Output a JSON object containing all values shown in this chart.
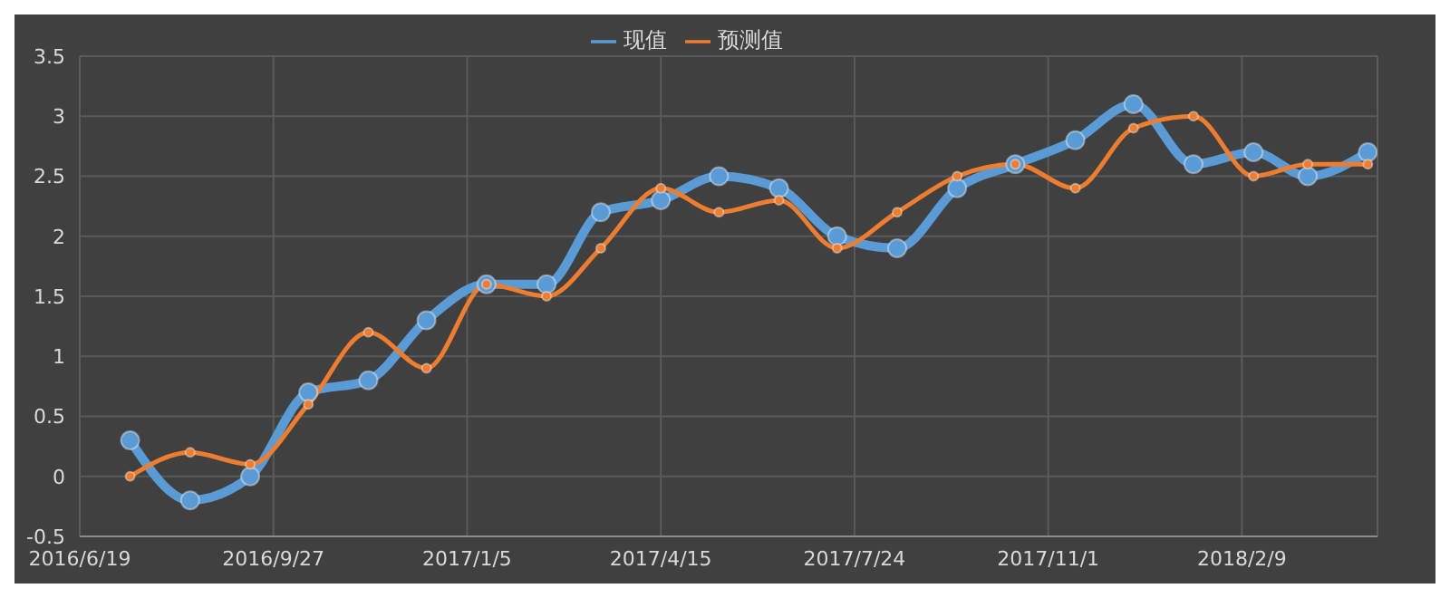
{
  "chart_data": {
    "type": "line",
    "x": [
      "2016-07-15",
      "2016-08-15",
      "2016-09-15",
      "2016-10-15",
      "2016-11-15",
      "2016-12-15",
      "2017-01-15",
      "2017-02-15",
      "2017-03-15",
      "2017-04-15",
      "2017-05-15",
      "2017-06-15",
      "2017-07-15",
      "2017-08-15",
      "2017-09-15",
      "2017-10-15",
      "2017-11-15",
      "2017-12-15",
      "2018-01-15",
      "2018-02-15",
      "2018-03-15",
      "2018-04-15"
    ],
    "series": [
      {
        "name": "现值",
        "color": "#5b9bd5",
        "values": [
          0.3,
          -0.2,
          0,
          0.7,
          0.8,
          1.3,
          1.6,
          1.6,
          2.2,
          2.3,
          2.5,
          2.4,
          2.0,
          1.9,
          2.4,
          2.6,
          2.8,
          3.1,
          2.6,
          2.7,
          2.5,
          2.7
        ]
      },
      {
        "name": "预测值",
        "color": "#ed7d31",
        "values": [
          0,
          0.2,
          0.1,
          0.6,
          1.2,
          0.9,
          1.6,
          1.5,
          1.9,
          2.4,
          2.2,
          2.3,
          1.9,
          2.2,
          2.5,
          2.6,
          2.4,
          2.9,
          3.0,
          2.5,
          2.6,
          2.6
        ]
      }
    ],
    "xlim": [
      "2016-06-19",
      "2018-04-20"
    ],
    "xticks": [
      {
        "value": "2016-06-19",
        "label": "2016/6/19"
      },
      {
        "value": "2016-09-27",
        "label": "2016/9/27"
      },
      {
        "value": "2017-01-05",
        "label": "2017/1/5"
      },
      {
        "value": "2017-04-15",
        "label": "2017/4/15"
      },
      {
        "value": "2017-07-24",
        "label": "2017/7/24"
      },
      {
        "value": "2017-11-01",
        "label": "2017/11/1"
      },
      {
        "value": "2018-02-09",
        "label": "2018/2/9"
      }
    ],
    "ylim": [
      -0.5,
      3.5
    ],
    "yticks": [
      -0.5,
      0,
      0.5,
      1,
      1.5,
      2,
      2.5,
      3,
      3.5
    ],
    "grid": true,
    "legend": "top",
    "marker": "circle",
    "line_style": "solid"
  }
}
